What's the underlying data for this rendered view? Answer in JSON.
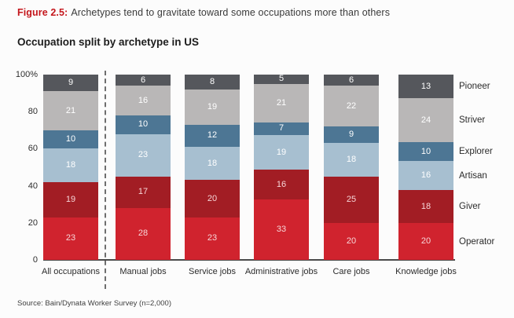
{
  "header": {
    "figure_label": "Figure 2.5:",
    "title": "Archetypes tend to gravitate toward some occupations more than others",
    "subtitle": "Occupation split by archetype in US"
  },
  "source_note": "Source: Bain/Dynata Worker Survey (n=2,000)",
  "colors": {
    "figure_label_red": "#c4161c",
    "axis_line": "#4a4a4a",
    "divider": "#6e6e6e"
  },
  "chart_data": {
    "type": "bar",
    "subtype": "stacked-percent",
    "title": "Occupation split by archetype in US",
    "xlabel": "",
    "ylabel": "",
    "ylim": [
      0,
      100
    ],
    "grid": false,
    "legend_position": "right-aligned-to-last-bar",
    "y_ticks": [
      "100%",
      "80",
      "60",
      "40",
      "20",
      "0"
    ],
    "categories": [
      "All occupations",
      "Manual jobs",
      "Service jobs",
      "Administrative jobs",
      "Care jobs",
      "Knowledge jobs"
    ],
    "series": [
      {
        "name": "Operator",
        "color": "#d0232e",
        "label_color": "#f7d6d8",
        "values": [
          23,
          28,
          23,
          33,
          20,
          20
        ]
      },
      {
        "name": "Giver",
        "color": "#a21d24",
        "label_color": "#f7d6d8",
        "values": [
          19,
          17,
          20,
          16,
          25,
          18
        ]
      },
      {
        "name": "Artisan",
        "color": "#a7bfd0",
        "label_color": "#ffffff",
        "values": [
          18,
          23,
          18,
          19,
          18,
          16
        ]
      },
      {
        "name": "Explorer",
        "color": "#4d7694",
        "label_color": "#ffffff",
        "values": [
          10,
          10,
          12,
          7,
          9,
          10
        ]
      },
      {
        "name": "Striver",
        "color": "#b9b7b7",
        "label_color": "#ffffff",
        "values": [
          21,
          16,
          19,
          21,
          22,
          24
        ]
      },
      {
        "name": "Pioneer",
        "color": "#55575c",
        "label_color": "#ffffff",
        "values": [
          9,
          6,
          8,
          5,
          6,
          13
        ]
      }
    ],
    "legend_order_top_to_bottom": [
      "Pioneer",
      "Striver",
      "Explorer",
      "Artisan",
      "Giver",
      "Operator"
    ]
  }
}
